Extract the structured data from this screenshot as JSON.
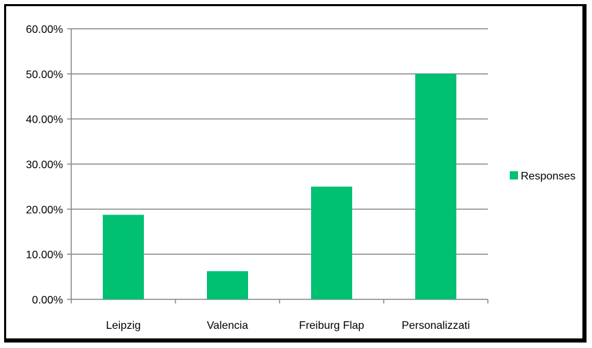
{
  "chart_data": {
    "type": "bar",
    "title": "",
    "xlabel": "",
    "ylabel": "",
    "categories": [
      "Leipzig",
      "Valencia",
      "Freiburg Flap",
      "Personalizzati"
    ],
    "series": [
      {
        "name": "Responses",
        "values": [
          0.1875,
          0.0625,
          0.25,
          0.5
        ],
        "color": "#00c072"
      }
    ],
    "ylim": [
      0,
      0.6
    ],
    "yticks": [
      0,
      0.1,
      0.2,
      0.3,
      0.4,
      0.5,
      0.6
    ],
    "ytick_labels": [
      "0.00%",
      "10.00%",
      "20.00%",
      "30.00%",
      "40.00%",
      "50.00%",
      "60.00%"
    ],
    "grid": true,
    "legend": "right"
  }
}
